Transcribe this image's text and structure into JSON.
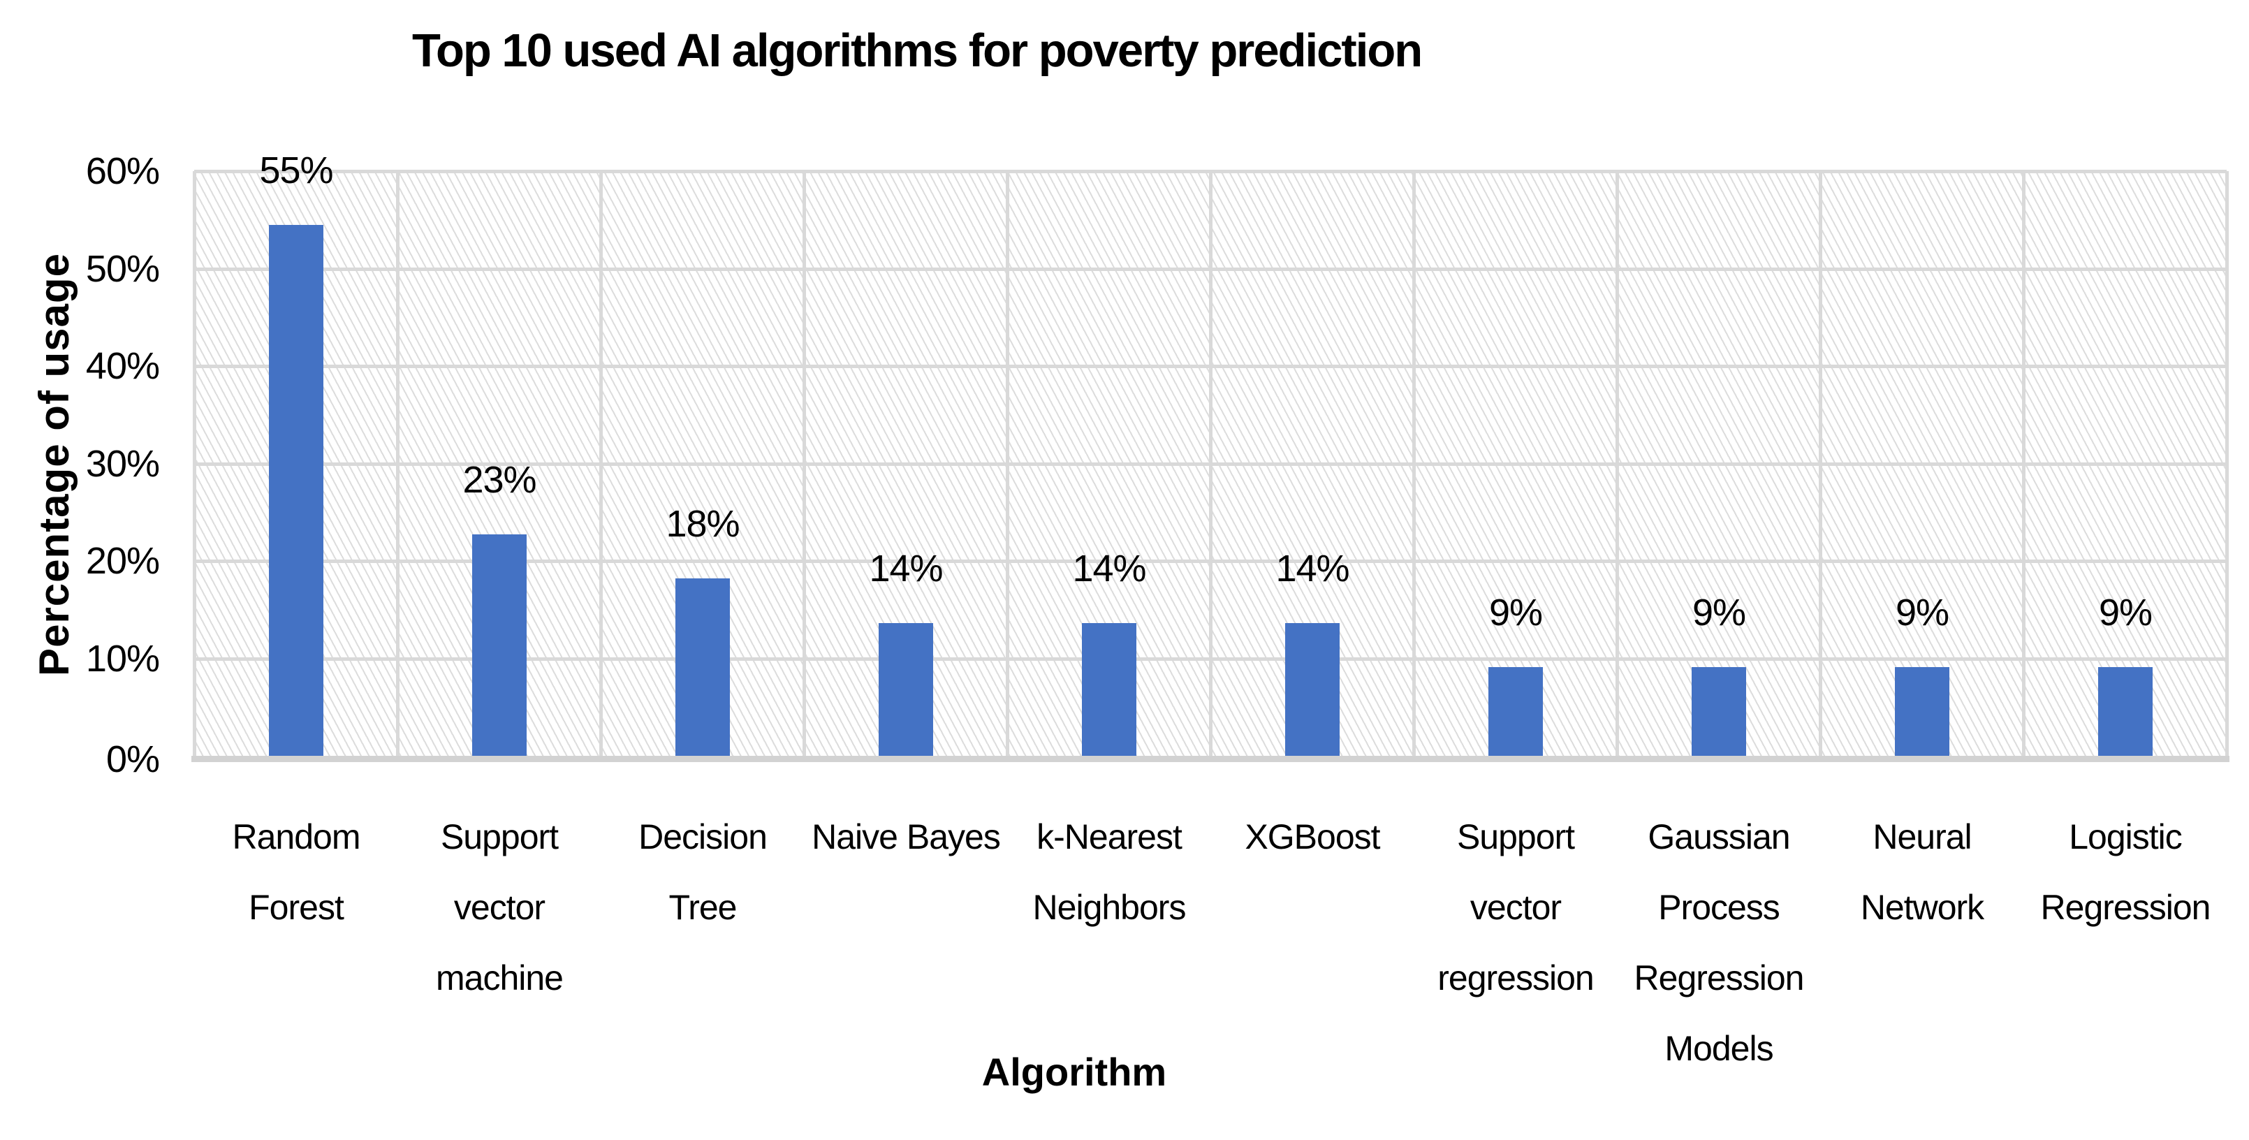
{
  "chart_data": {
    "type": "bar",
    "title": "Top 10 used AI algorithms for poverty prediction",
    "xlabel": "Algorithm",
    "ylabel": "Percentage of usage",
    "categories": [
      "Random Forest",
      "Support vector machine",
      "Decision Tree",
      "Naive Bayes",
      "k-Nearest Neighbors",
      "XGBoost",
      "Support vector regression",
      "Gaussian Process Regression Models",
      "Neural Network",
      "Logistic Regression"
    ],
    "category_lines": [
      [
        "Random",
        "Forest"
      ],
      [
        "Support",
        "vector",
        "machine"
      ],
      [
        "Decision",
        "Tree"
      ],
      [
        "Naive Bayes"
      ],
      [
        "k-Nearest",
        "Neighbors"
      ],
      [
        "XGBoost"
      ],
      [
        "Support",
        "vector",
        "regression"
      ],
      [
        "Gaussian",
        "Process",
        "Regression",
        "Models"
      ],
      [
        "Neural",
        "Network"
      ],
      [
        "Logistic",
        "Regression"
      ]
    ],
    "values": [
      54.5,
      22.7,
      18.2,
      13.6,
      13.6,
      13.6,
      9.1,
      9.1,
      9.1,
      9.1
    ],
    "data_labels": [
      "55%",
      "23%",
      "18%",
      "14%",
      "14%",
      "14%",
      "9%",
      "9%",
      "9%",
      "9%"
    ],
    "y_ticks": [
      "60%",
      "50%",
      "40%",
      "30%",
      "20%",
      "10%",
      "0%"
    ],
    "y_tick_values": [
      60,
      50,
      40,
      30,
      20,
      10,
      0
    ],
    "ylim": [
      0,
      60
    ],
    "grid": "horizontal and vertical gridlines on",
    "legend_position": "none",
    "bar_color": "#4472C4",
    "gridline_color": "#d9d9d9",
    "plot_background": "light gray diagonal hatch pattern on white"
  }
}
